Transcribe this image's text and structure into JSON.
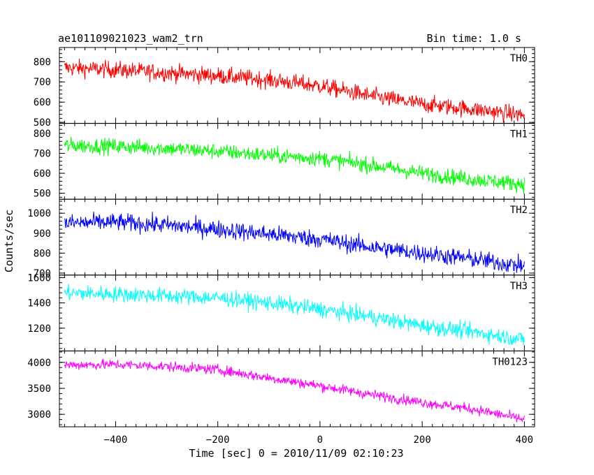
{
  "header": {
    "left_title": "ae101109021023_wam2_trn",
    "right_title": "Bin time: 1.0 s"
  },
  "chart_data": {
    "type": "line",
    "xlabel": "Time [sec] 0 = 2010/11/09 02:10:23",
    "ylabel": "Counts/sec",
    "xlim": [
      -510,
      420
    ],
    "xticks": [
      -400,
      -200,
      0,
      200,
      400
    ],
    "x": [
      -500,
      -400,
      -300,
      -200,
      -100,
      0,
      100,
      200,
      300,
      400
    ],
    "panels": [
      {
        "name": "TH0",
        "color": "#ff0000",
        "ylim": [
          495,
          870
        ],
        "yticks": [
          500,
          600,
          700,
          800
        ],
        "values": [
          770,
          760,
          745,
          730,
          710,
          680,
          630,
          590,
          565,
          535
        ],
        "noise": 30
      },
      {
        "name": "TH1",
        "color": "#00ff00",
        "ylim": [
          470,
          850
        ],
        "yticks": [
          500,
          600,
          700,
          800
        ],
        "values": [
          740,
          735,
          725,
          710,
          690,
          675,
          640,
          600,
          570,
          545
        ],
        "noise": 28
      },
      {
        "name": "TH2",
        "color": "#0000ff",
        "ylim": [
          690,
          1070
        ],
        "yticks": [
          700,
          800,
          900,
          1000
        ],
        "values": [
          950,
          955,
          940,
          920,
          895,
          870,
          830,
          800,
          770,
          735
        ],
        "noise": 32
      },
      {
        "name": "TH3",
        "color": "#00ffff",
        "ylim": [
          1020,
          1620
        ],
        "yticks": [
          1200,
          1400,
          1600
        ],
        "values": [
          1480,
          1470,
          1455,
          1440,
          1400,
          1350,
          1290,
          1220,
          1170,
          1110
        ],
        "noise": 45
      },
      {
        "name": "TH0123",
        "color": "#ff00ff",
        "ylim": [
          2760,
          4220
        ],
        "yticks": [
          3000,
          3500,
          4000
        ],
        "values": [
          3950,
          3960,
          3920,
          3860,
          3700,
          3550,
          3380,
          3230,
          3100,
          2900
        ],
        "noise": 70
      }
    ]
  }
}
